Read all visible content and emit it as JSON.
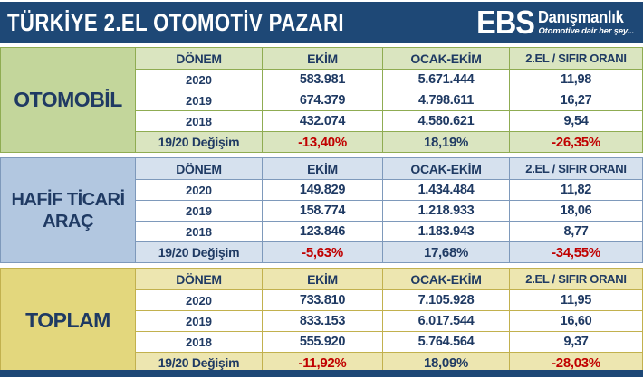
{
  "header": {
    "title": "TÜRKİYE 2.EL OTOMOTİV PAZARI",
    "logo": {
      "ebs": "EBS",
      "company": "Danışmanlık",
      "tagline": "Otomotive dair her şey..."
    }
  },
  "columns": {
    "donem": "DÖNEM",
    "ekim": "EKİM",
    "ocak_ekim": "OCAK-EKİM",
    "oran": "2.EL / SIFIR ORANI"
  },
  "change_label": "19/20 Değişim",
  "sections": [
    {
      "label": "OTOMOBİL",
      "rows": [
        {
          "year": "2020",
          "ekim": "583.981",
          "ocak_ekim": "5.671.444",
          "oran": "11,98"
        },
        {
          "year": "2019",
          "ekim": "674.379",
          "ocak_ekim": "4.798.611",
          "oran": "16,27"
        },
        {
          "year": "2018",
          "ekim": "432.074",
          "ocak_ekim": "4.580.621",
          "oran": "9,54"
        }
      ],
      "change": {
        "ekim": "-13,40%",
        "ocak_ekim": "18,19%",
        "oran": "-26,35%"
      }
    },
    {
      "label": "HAFİF TİCARİ ARAÇ",
      "rows": [
        {
          "year": "2020",
          "ekim": "149.829",
          "ocak_ekim": "1.434.484",
          "oran": "11,82"
        },
        {
          "year": "2019",
          "ekim": "158.774",
          "ocak_ekim": "1.218.933",
          "oran": "18,06"
        },
        {
          "year": "2018",
          "ekim": "123.846",
          "ocak_ekim": "1.183.943",
          "oran": "8,77"
        }
      ],
      "change": {
        "ekim": "-5,63%",
        "ocak_ekim": "17,68%",
        "oran": "-34,55%"
      }
    },
    {
      "label": "TOPLAM",
      "rows": [
        {
          "year": "2020",
          "ekim": "733.810",
          "ocak_ekim": "7.105.928",
          "oran": "11,95"
        },
        {
          "year": "2019",
          "ekim": "833.153",
          "ocak_ekim": "6.017.544",
          "oran": "16,60"
        },
        {
          "year": "2018",
          "ekim": "555.920",
          "ocak_ekim": "5.764.564",
          "oran": "9,37"
        }
      ],
      "change": {
        "ekim": "-11,92%",
        "ocak_ekim": "18,09%",
        "oran": "-28,03%"
      }
    }
  ],
  "colors": {
    "navy_bar": "#1E4876",
    "text_navy": "#1F3A63",
    "negative_red": "#C00000",
    "green": {
      "label": "#C3D69B",
      "light": "#DAE5C0",
      "border": "#8FAC52"
    },
    "blue": {
      "label": "#B2C7E0",
      "light": "#D6E1EE",
      "border": "#7E99BB"
    },
    "yellow": {
      "label": "#E3D77D",
      "light": "#EDE6B0",
      "border": "#C2B14E"
    }
  },
  "chart_data": {
    "type": "table",
    "title": "TÜRKİYE 2.EL OTOMOTİV PAZARI",
    "columns": [
      "DÖNEM",
      "EKİM",
      "OCAK-EKİM",
      "2.EL / SIFIR ORANI"
    ],
    "tables": [
      {
        "name": "OTOMOBİL",
        "rows": [
          [
            "2020",
            "583.981",
            "5.671.444",
            "11,98"
          ],
          [
            "2019",
            "674.379",
            "4.798.611",
            "16,27"
          ],
          [
            "2018",
            "432.074",
            "4.580.621",
            "9,54"
          ],
          [
            "19/20 Değişim",
            "-13,40%",
            "18,19%",
            "-26,35%"
          ]
        ]
      },
      {
        "name": "HAFİF TİCARİ ARAÇ",
        "rows": [
          [
            "2020",
            "149.829",
            "1.434.484",
            "11,82"
          ],
          [
            "2019",
            "158.774",
            "1.218.933",
            "18,06"
          ],
          [
            "2018",
            "123.846",
            "1.183.943",
            "8,77"
          ],
          [
            "19/20 Değişim",
            "-5,63%",
            "17,68%",
            "-34,55%"
          ]
        ]
      },
      {
        "name": "TOPLAM",
        "rows": [
          [
            "2020",
            "733.810",
            "7.105.928",
            "11,95"
          ],
          [
            "2019",
            "833.153",
            "6.017.544",
            "16,60"
          ],
          [
            "2018",
            "555.920",
            "5.764.564",
            "9,37"
          ],
          [
            "19/20 Değişim",
            "-11,92%",
            "18,09%",
            "-28,03%"
          ]
        ]
      }
    ]
  }
}
